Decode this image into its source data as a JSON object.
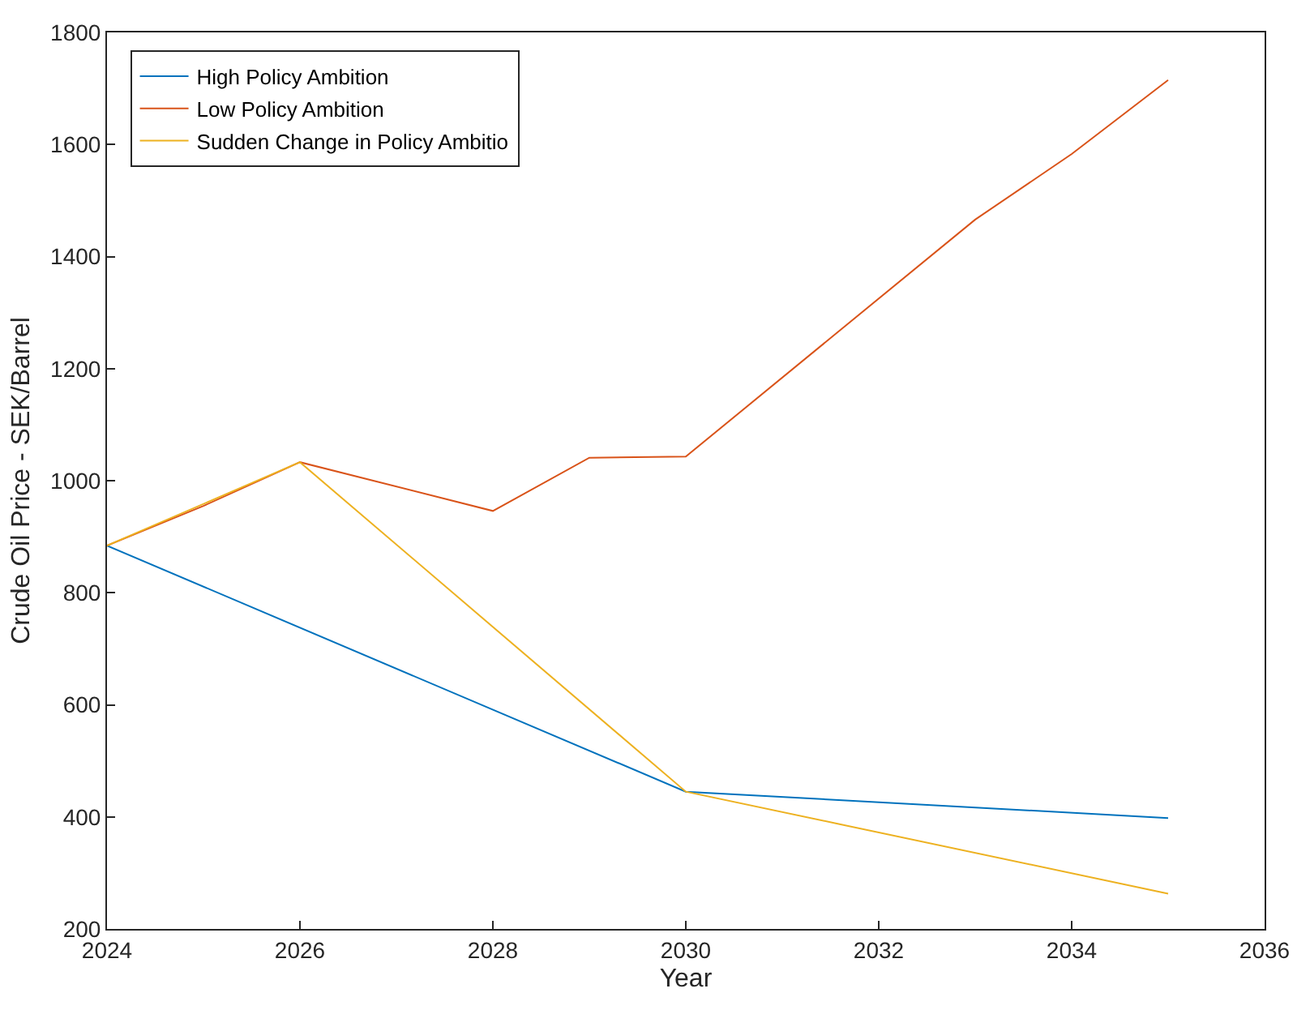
{
  "chart_data": {
    "type": "line",
    "xlabel": "Year",
    "ylabel": "Crude Oil Price - SEK/Barrel",
    "xlim": [
      2024,
      2036
    ],
    "xticks": [
      2024,
      2026,
      2028,
      2030,
      2032,
      2034,
      2036
    ],
    "ylim": [
      200,
      1800
    ],
    "yticks": [
      200,
      400,
      600,
      800,
      1000,
      1200,
      1400,
      1600,
      1800
    ],
    "grid": false,
    "legend": "top left",
    "marker": "none",
    "line_style": "solid",
    "series": [
      {
        "name": "High Policy Ambition",
        "color": "#0072bd",
        "x": [
          2024,
          2030,
          2035
        ],
        "values": [
          884,
          445,
          398
        ]
      },
      {
        "name": "Low Policy Ambition",
        "color": "#d95319",
        "x": [
          2024,
          2025,
          2026,
          2028,
          2029,
          2030,
          2033,
          2034,
          2035
        ],
        "values": [
          884,
          955,
          1033,
          946,
          1041,
          1043,
          1466,
          1583,
          1715
        ]
      },
      {
        "name": "Sudden Change in Policy Ambitio",
        "color": "#edb120",
        "x": [
          2024,
          2026,
          2030,
          2035
        ],
        "values": [
          884,
          1033,
          445,
          263
        ]
      }
    ]
  }
}
